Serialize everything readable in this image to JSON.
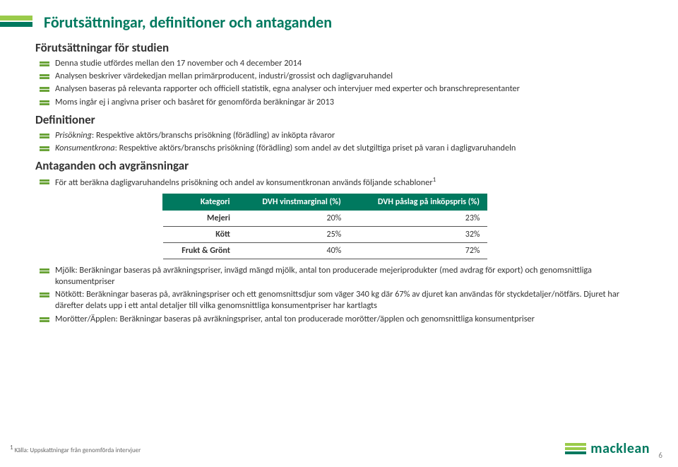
{
  "colors": {
    "brand_green": "#00795f",
    "accent_green": "#9acb4a",
    "text": "#333333",
    "bg": "#ffffff",
    "rule": "#555555"
  },
  "title": "Förutsättningar, definitioner och antaganden",
  "section1": {
    "heading": "Förutsättningar för studien",
    "items": [
      "Denna studie utfördes mellan den 17 november och 4 december 2014",
      "Analysen beskriver värdekedjan mellan primärproducent, industri/grossist och dagligvaruhandel",
      "Analysen baseras på relevanta rapporter och officiell statistik, egna analyser och intervjuer med experter och branschrepresentanter",
      "Moms ingår ej i angivna priser och basåret för genomförda beräkningar är 2013"
    ]
  },
  "section2": {
    "heading": "Definitioner",
    "items": [
      {
        "term": "Prisökning",
        "def": ": Respektive aktörs/branschs prisökning (förädling) av inköpta råvaror"
      },
      {
        "term": "Konsumentkrona",
        "def": ": Respektive aktörs/branschs prisökning (förädling) som andel av det slutgiltiga priset på varan i dagligvaruhandeln"
      }
    ]
  },
  "section3": {
    "heading": "Antaganden och avgränsningar",
    "intro": "För att beräkna dagligvaruhandelns prisökning och andel av konsumentkronan används följande schabloner",
    "sup": "1",
    "table": {
      "columns": [
        "Kategori",
        "DVH vinstmarginal (%)",
        "DVH påslag på inköpspris (%)"
      ],
      "rows": [
        [
          "Mejeri",
          "20%",
          "23%"
        ],
        [
          "Kött",
          "25%",
          "32%"
        ],
        [
          "Frukt & Grönt",
          "40%",
          "72%"
        ]
      ]
    },
    "items": [
      "Mjölk: Beräkningar baseras på avräkningspriser, invägd mängd mjölk, antal ton producerade mejeriprodukter (med avdrag för export) och genomsnittliga konsumentpriser",
      "Nötkött: Beräkningar baseras på, avräkningspriser och ett genomsnittsdjur som väger 340 kg där 67% av djuret kan användas för styckdetaljer/nötfärs. Djuret har därefter delats upp i ett antal detaljer till vilka genomsnittliga konsumentpriser har kartlagts",
      "Morötter/Äpplen: Beräkningar baseras på avräkningspriser, antal ton producerade morötter/äpplen och genomsnittliga konsumentpriser"
    ]
  },
  "footnote": {
    "sup": "1",
    "text": " Källa: Uppskattningar från genomförda intervjuer"
  },
  "logo_text": "macklean",
  "page_number": "6"
}
